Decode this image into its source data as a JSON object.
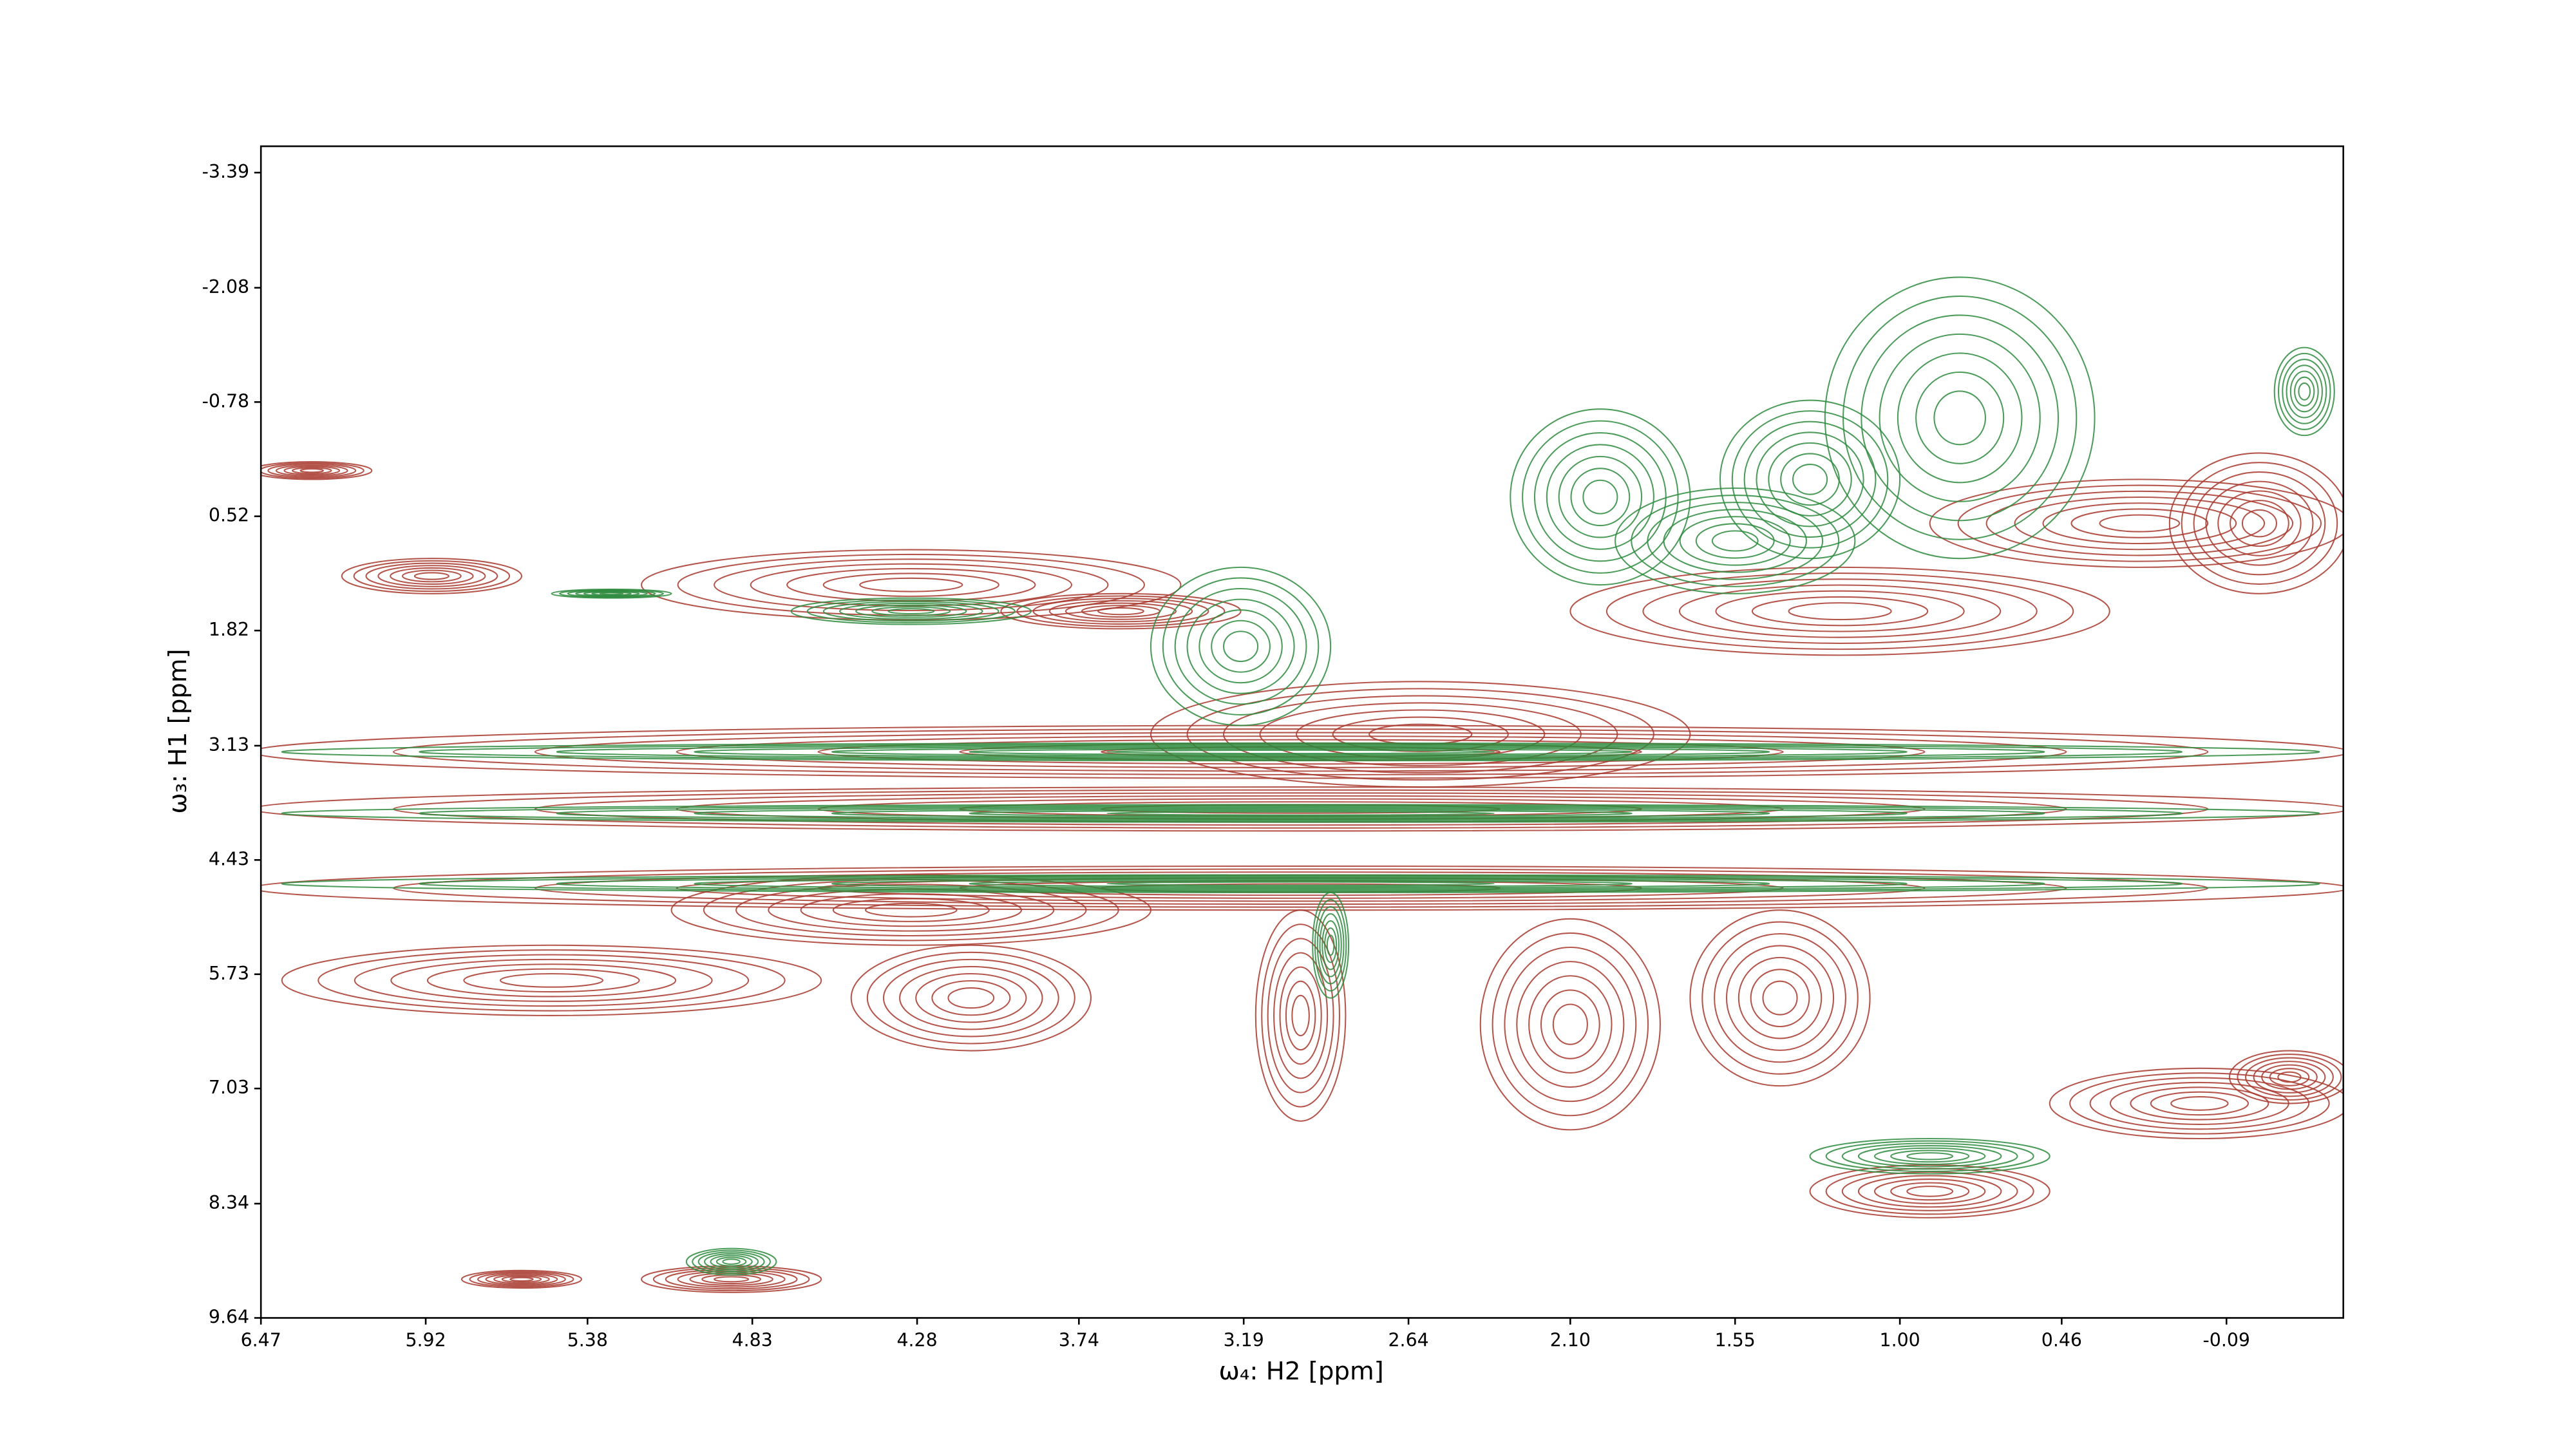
{
  "chart_data": {
    "type": "contour",
    "xlabel": "ω₄: H2 [ppm]",
    "ylabel": "ω₃: H1 [ppm]",
    "xlim": [
      6.47,
      -0.48
    ],
    "ylim": [
      9.64,
      -3.69
    ],
    "xticks": [
      6.47,
      5.92,
      5.38,
      4.83,
      4.28,
      3.74,
      3.19,
      2.64,
      {
        "value": 2.1,
        "label": "2.10"
      },
      1.55,
      {
        "value": 1,
        "label": "1.00"
      },
      0.46,
      -0.09
    ],
    "yticks": [
      -3.39,
      -2.08,
      -0.78,
      0.52,
      1.82,
      3.13,
      4.43,
      5.73,
      7.03,
      8.34,
      9.64
    ],
    "series": [
      {
        "color": "#a8382e",
        "x": [
          3.0,
          3.0,
          3.0,
          5.5,
          4.3,
          2.6,
          1.2,
          0.2,
          4.3,
          5.9,
          3.6,
          3.0,
          2.1,
          1.4,
          4.1,
          0.9,
          0.0,
          -0.3,
          4.9,
          5.6,
          6.3,
          -0.2
        ],
        "values": [
          3.2,
          3.85,
          4.75,
          5.8,
          5.0,
          3.0,
          1.6,
          0.6,
          1.3,
          1.2,
          1.6,
          6.2,
          6.3,
          6.0,
          6.0,
          8.2,
          7.2,
          6.9,
          9.2,
          9.2,
          0.0,
          0.6
        ],
        "x_spread": [
          3.5,
          3.5,
          3.5,
          0.9,
          0.8,
          0.9,
          0.9,
          0.7,
          0.9,
          0.3,
          0.4,
          0.15,
          0.3,
          0.3,
          0.4,
          0.4,
          0.5,
          0.2,
          0.3,
          0.2,
          0.2,
          0.3
        ],
        "y_spread": [
          0.3,
          0.25,
          0.25,
          0.4,
          0.4,
          0.6,
          0.5,
          0.5,
          0.4,
          0.2,
          0.2,
          1.2,
          1.2,
          1.0,
          0.6,
          0.3,
          0.4,
          0.3,
          0.15,
          0.1,
          0.1,
          0.8
        ]
      },
      {
        "color": "#2e8b3e",
        "x": [
          0.8,
          1.3,
          2.0,
          1.55,
          3.2,
          -0.35,
          4.3,
          5.3,
          2.9,
          4.9,
          3.0,
          3.0,
          3.0,
          0.9
        ],
        "values": [
          -0.6,
          0.1,
          0.3,
          0.8,
          2.0,
          -0.9,
          1.6,
          1.4,
          5.4,
          9.0,
          3.2,
          3.9,
          4.7,
          7.8
        ],
        "x_spread": [
          0.45,
          0.3,
          0.3,
          0.4,
          0.3,
          0.1,
          0.4,
          0.2,
          0.06,
          0.15,
          3.4,
          3.4,
          3.4,
          0.4
        ],
        "y_spread": [
          1.6,
          0.9,
          1.0,
          0.6,
          0.9,
          0.5,
          0.15,
          0.05,
          0.6,
          0.15,
          0.1,
          0.1,
          0.1,
          0.2
        ]
      }
    ]
  }
}
